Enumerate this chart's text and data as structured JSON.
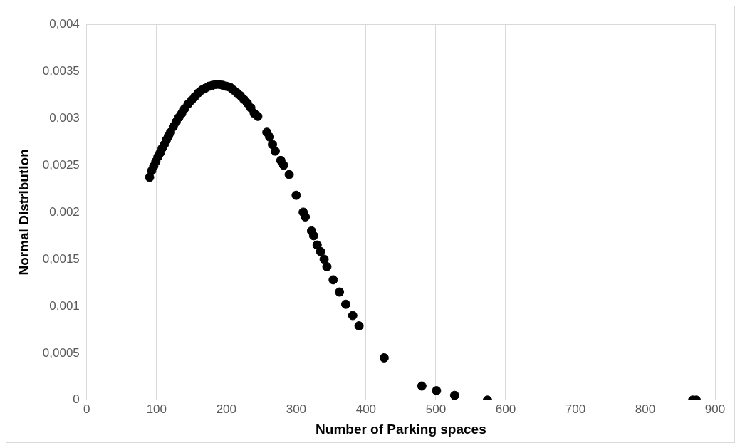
{
  "chart_data": {
    "type": "scatter",
    "xlabel": "Number of Parking spaces",
    "ylabel": "Normal Distribution",
    "marker": "circle",
    "grid": true,
    "xlim": [
      0,
      900
    ],
    "xticks": [
      0,
      100,
      200,
      300,
      400,
      500,
      600,
      700,
      800,
      900
    ],
    "ylim": [
      0,
      0.004
    ],
    "yticks": [
      0,
      {
        "value": 0.0005,
        "label": "0,0005"
      },
      {
        "value": 0.001,
        "label": "0,001"
      },
      {
        "value": 0.0015,
        "label": "0,0015"
      },
      {
        "value": 0.002,
        "label": "0,002"
      },
      {
        "value": 0.0025,
        "label": "0,0025"
      },
      {
        "value": 0.003,
        "label": "0,003"
      },
      {
        "value": 0.0035,
        "label": "0,0035"
      },
      {
        "value": 0.004,
        "label": "0,004"
      }
    ],
    "series": [
      {
        "color": "#000000",
        "x": [
          90,
          93,
          96,
          99,
          102,
          105,
          108,
          111,
          114,
          117,
          120,
          124,
          128,
          132,
          136,
          140,
          145,
          150,
          155,
          160,
          165,
          170,
          175,
          180,
          185,
          190,
          195,
          200,
          205,
          210,
          215,
          220,
          225,
          230,
          235,
          240,
          245,
          258,
          262,
          266,
          270,
          278,
          282,
          290,
          300,
          310,
          313,
          322,
          325,
          330,
          335,
          340,
          344,
          353,
          362,
          371,
          381,
          390,
          426,
          480,
          501,
          527,
          574,
          868,
          873
        ],
        "values": [
          0.00237,
          0.00244,
          0.00249,
          0.00254,
          0.00259,
          0.00263,
          0.00268,
          0.00272,
          0.00277,
          0.00281,
          0.00285,
          0.00291,
          0.00296,
          0.00301,
          0.00305,
          0.0031,
          0.00315,
          0.00319,
          0.00323,
          0.00327,
          0.0033,
          0.00332,
          0.00334,
          0.00335,
          0.00336,
          0.00336,
          0.00335,
          0.00334,
          0.00333,
          0.0033,
          0.00327,
          0.00324,
          0.0032,
          0.00316,
          0.00311,
          0.00305,
          0.00302,
          0.00285,
          0.0028,
          0.00272,
          0.00265,
          0.00255,
          0.0025,
          0.0024,
          0.00218,
          0.002,
          0.00195,
          0.0018,
          0.00175,
          0.00165,
          0.00158,
          0.0015,
          0.00142,
          0.00128,
          0.00115,
          0.00102,
          0.0009,
          0.00079,
          0.00045,
          0.00015,
          0.0001,
          5e-05,
          0,
          0,
          0
        ]
      }
    ]
  }
}
